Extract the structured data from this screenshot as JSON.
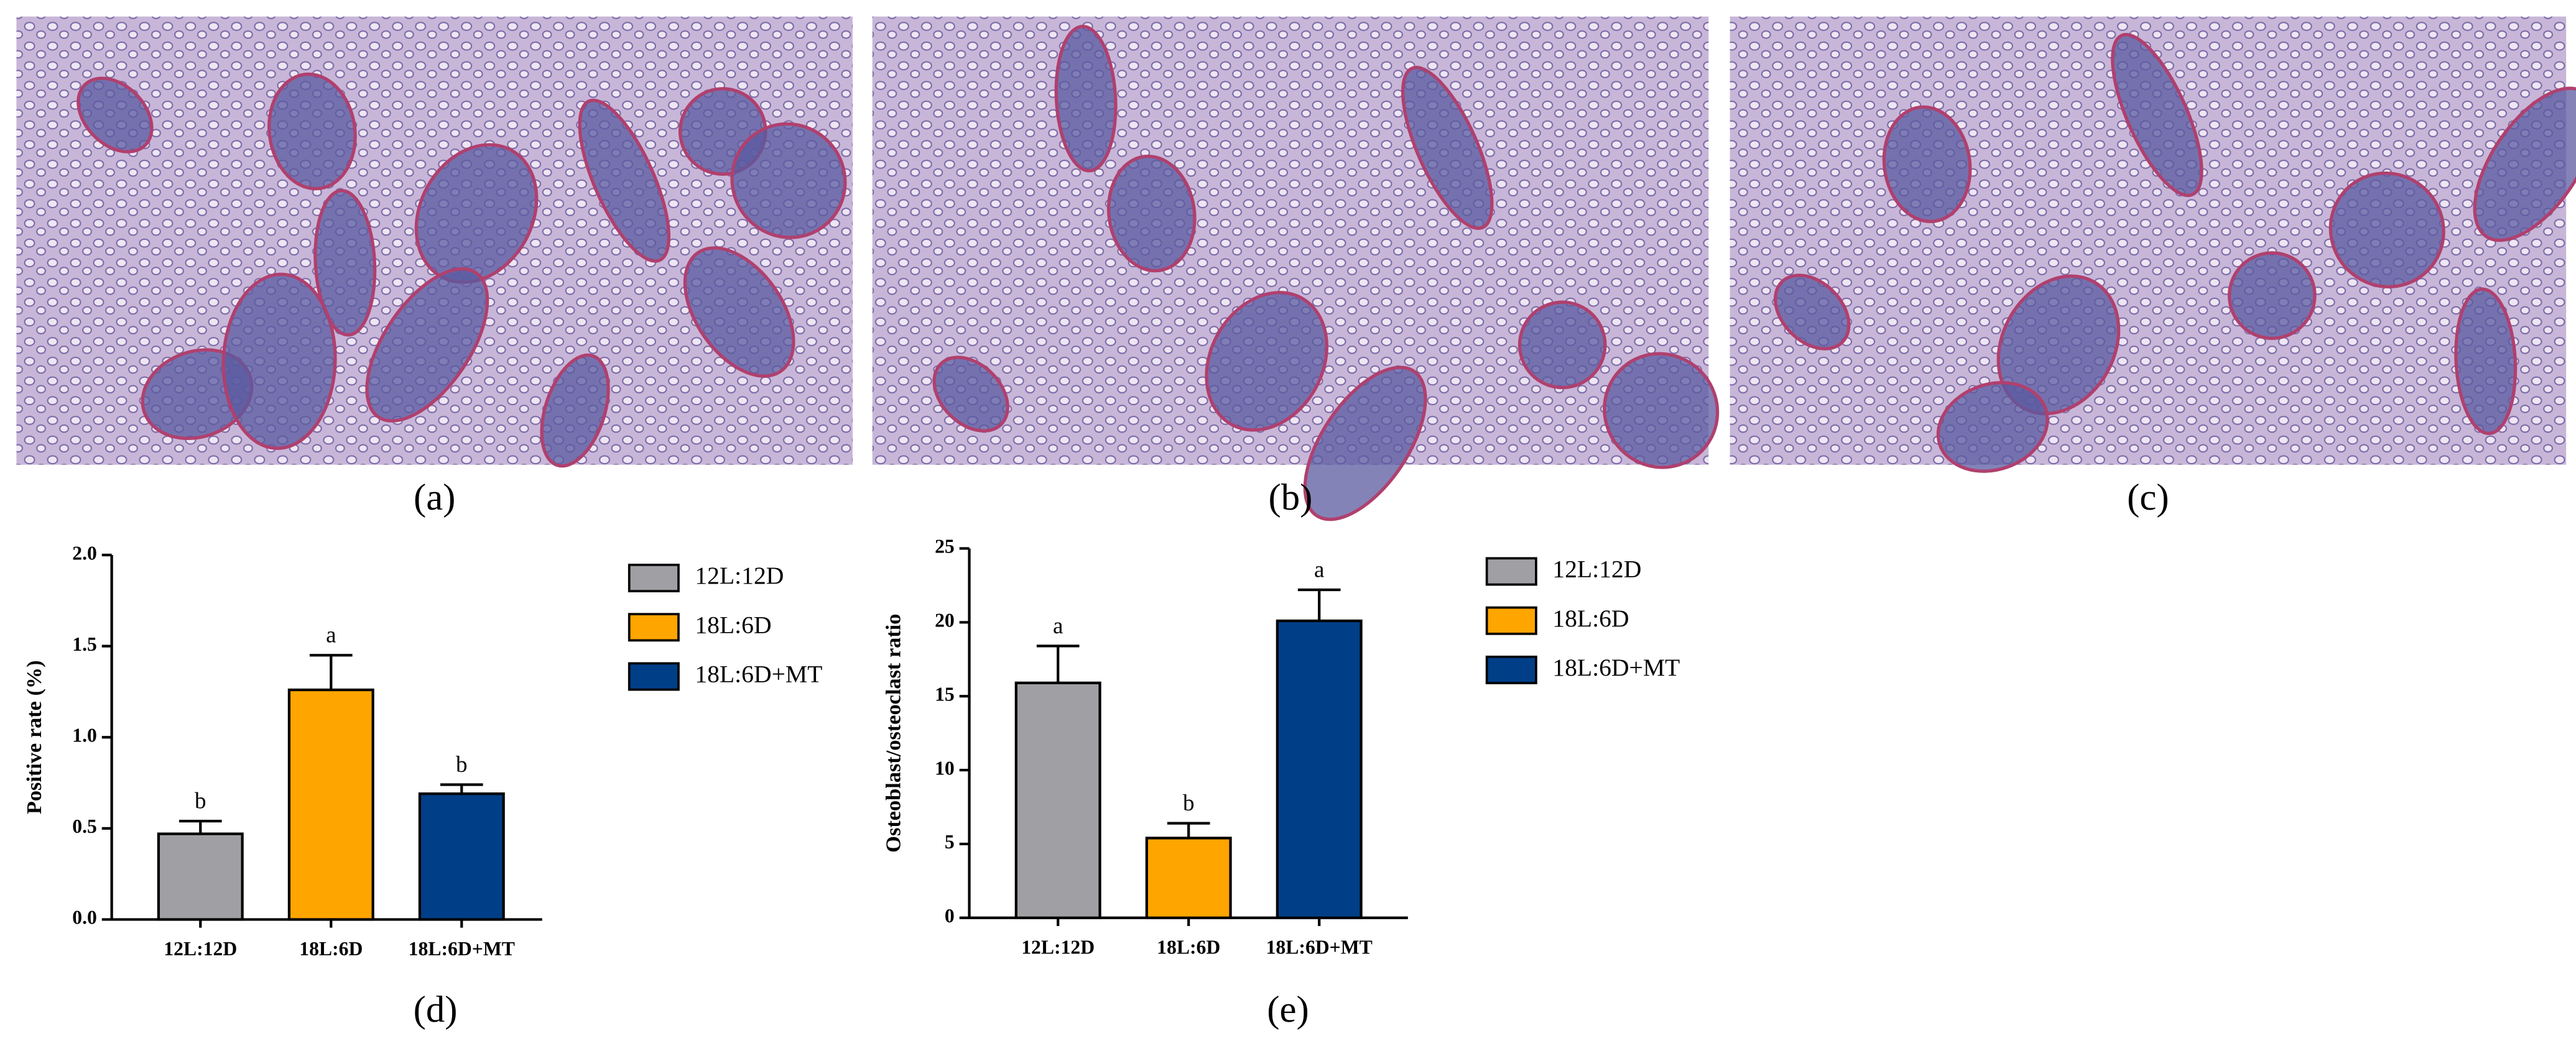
{
  "images": [
    "(a)",
    "(b)",
    "(c)"
  ],
  "chart_data": [
    {
      "type": "bar",
      "panel_label": "(d)",
      "y_label": "Positive rate (%)",
      "categories": [
        "12L:12D",
        "18L:6D",
        "18L:6D+MT"
      ],
      "values": [
        0.47,
        1.26,
        0.69
      ],
      "errors": [
        0.07,
        0.19,
        0.05
      ],
      "annotations": [
        "b",
        "a",
        "b"
      ],
      "colors": [
        "#a0a0a4",
        "#ffa500",
        "#003f88"
      ],
      "legend": [
        "12L:12D",
        "18L:6D",
        "18L:6D+MT"
      ],
      "ylim": [
        0,
        2
      ],
      "yticks": [
        {
          "value": 0,
          "label": "0.0"
        },
        {
          "value": 0.5,
          "label": "0.5"
        },
        {
          "value": 1,
          "label": "1.0"
        },
        {
          "value": 1.5,
          "label": "1.5"
        },
        {
          "value": 2,
          "label": "2.0"
        }
      ]
    },
    {
      "type": "bar",
      "panel_label": "(e)",
      "y_label": "Osteoblast/osteoclast ratio",
      "categories": [
        "12L:12D",
        "18L:6D",
        "18L:6D+MT"
      ],
      "values": [
        15.9,
        5.4,
        20.1
      ],
      "errors": [
        2.5,
        1.0,
        2.1
      ],
      "annotations": [
        "a",
        "b",
        "a"
      ],
      "colors": [
        "#a0a0a4",
        "#ffa500",
        "#003f88"
      ],
      "legend": [
        "12L:12D",
        "18L:6D",
        "18L:6D+MT"
      ],
      "ylim": [
        0,
        25
      ],
      "yticks": [
        0,
        5,
        10,
        15,
        20,
        25
      ]
    }
  ]
}
